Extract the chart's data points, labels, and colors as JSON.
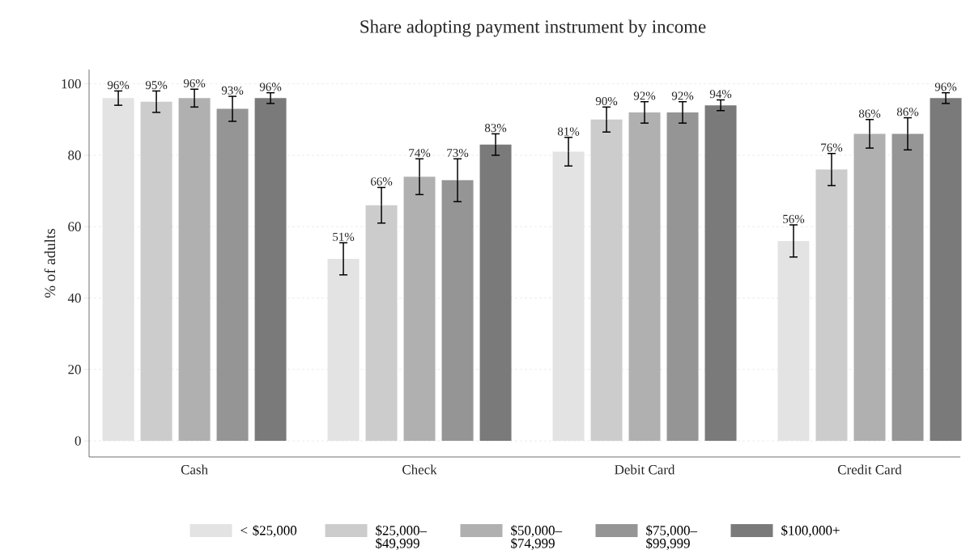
{
  "chart_data": {
    "type": "bar",
    "title": "Share adopting payment instrument by income",
    "ylabel": "% of adults",
    "categories": [
      "Cash",
      "Check",
      "Debit Card",
      "Credit Card"
    ],
    "series": [
      {
        "name": "< $25,000",
        "color": "#e3e3e3",
        "values": [
          96,
          51,
          81,
          56
        ],
        "errors": [
          2,
          4.5,
          4,
          4.5
        ],
        "value_labels": [
          "96%",
          "51%",
          "81%",
          "56%"
        ]
      },
      {
        "name": "$25,000–$49,999",
        "color": "#cccccc",
        "values": [
          95,
          66,
          90,
          76
        ],
        "errors": [
          3,
          5,
          3.5,
          4.5
        ],
        "value_labels": [
          "95%",
          "66%",
          "90%",
          "76%"
        ]
      },
      {
        "name": "$50,000–$74,999",
        "color": "#b0b0b0",
        "values": [
          96,
          74,
          92,
          86
        ],
        "errors": [
          2.5,
          5,
          3,
          4
        ],
        "value_labels": [
          "96%",
          "74%",
          "92%",
          "86%"
        ]
      },
      {
        "name": "$75,000–$99,999",
        "color": "#959595",
        "values": [
          93,
          73,
          92,
          86
        ],
        "errors": [
          3.5,
          6,
          3,
          4.5
        ],
        "value_labels": [
          "93%",
          "73%",
          "92%",
          "86%"
        ]
      },
      {
        "name": "$100,000+",
        "color": "#7a7a7a",
        "values": [
          96,
          83,
          94,
          96
        ],
        "errors": [
          1.5,
          3,
          1.5,
          1.5
        ],
        "value_labels": [
          "96%",
          "83%",
          "94%",
          "96%"
        ]
      }
    ],
    "ylim": [
      -4.5,
      104
    ],
    "yticks": [
      0,
      20,
      40,
      60,
      80,
      100
    ],
    "grid": "y",
    "legend": "bottom"
  }
}
